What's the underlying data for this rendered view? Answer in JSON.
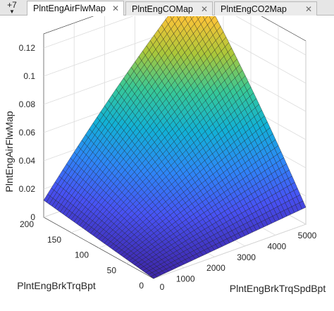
{
  "tabs": {
    "overflow_label": "+7",
    "items": [
      {
        "label": "PlntEngAirFlwMap",
        "active": true
      },
      {
        "label": "PlntEngCOMap",
        "active": false
      },
      {
        "label": "PlntEngCO2Map",
        "active": false
      }
    ]
  },
  "chart_data": {
    "type": "surface",
    "title": "",
    "xlabel": "PlntEngBrkTrqSpdBpt",
    "ylabel": "PlntEngBrkTrqBpt",
    "zlabel": "PlntEngAirFlwMap",
    "xlim": [
      0,
      5000
    ],
    "ylim": [
      0,
      200
    ],
    "zlim": [
      0,
      0.12
    ],
    "x_ticks": [
      "1000",
      "2000",
      "3000",
      "4000",
      "5000"
    ],
    "y_ticks": [
      "0",
      "50",
      "100",
      "150",
      "200"
    ],
    "z_ticks": [
      "0",
      "0.02",
      "0.04",
      "0.06",
      "0.08",
      "0.1",
      "0.12"
    ],
    "grid": true,
    "colormap": "parula",
    "surface_corners": {
      "x0_y0": 0.0,
      "x5000_y0": 0.012,
      "x0_y200": 0.012,
      "x5000_y200": 0.13
    }
  }
}
